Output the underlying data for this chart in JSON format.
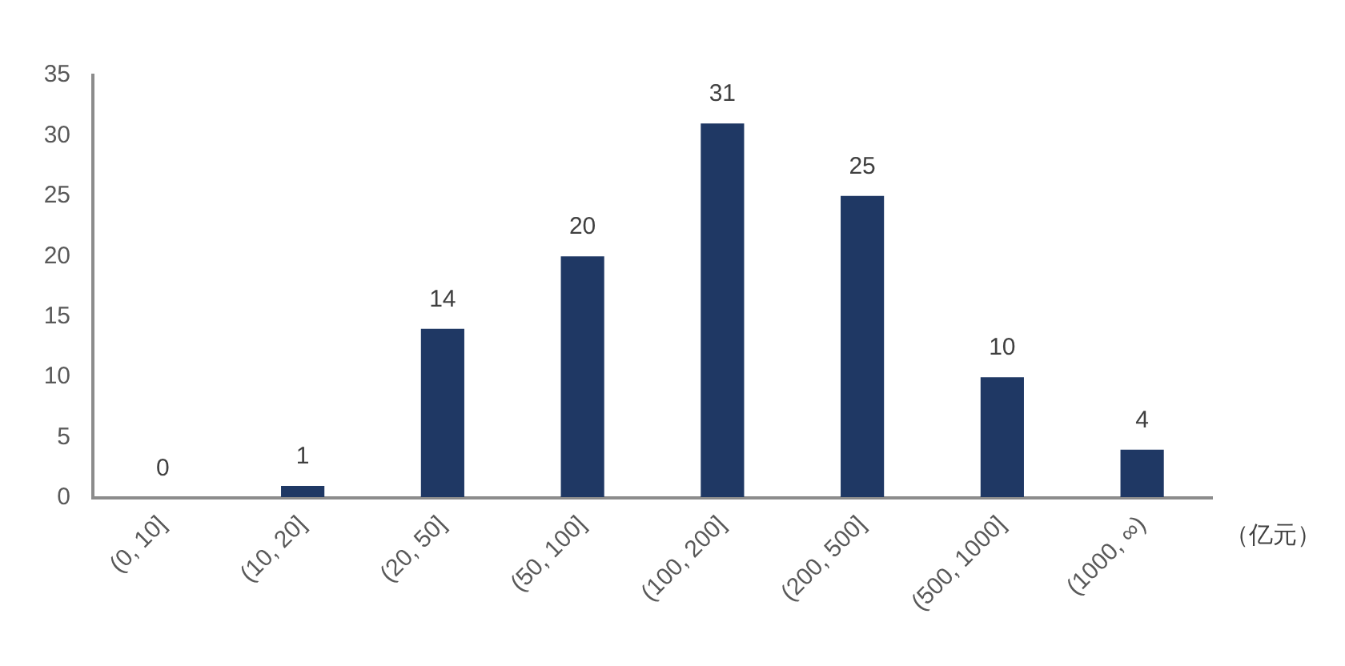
{
  "chart_data": {
    "type": "bar",
    "xlabel": "（亿元）",
    "categories": [
      "(0, 10]",
      "(10, 20]",
      "(20, 50]",
      "(50, 100]",
      "(100, 200]",
      "(200, 500]",
      "(500, 1000]",
      "(1000, ∞)"
    ],
    "values": [
      0,
      1,
      14,
      20,
      31,
      25,
      10,
      4
    ],
    "color": "#1f3864",
    "ylim": [
      0,
      35
    ],
    "yticks": [
      0,
      5,
      10,
      15,
      20,
      25,
      30,
      35
    ],
    "grid": false,
    "data_labels": true,
    "legend": false
  }
}
